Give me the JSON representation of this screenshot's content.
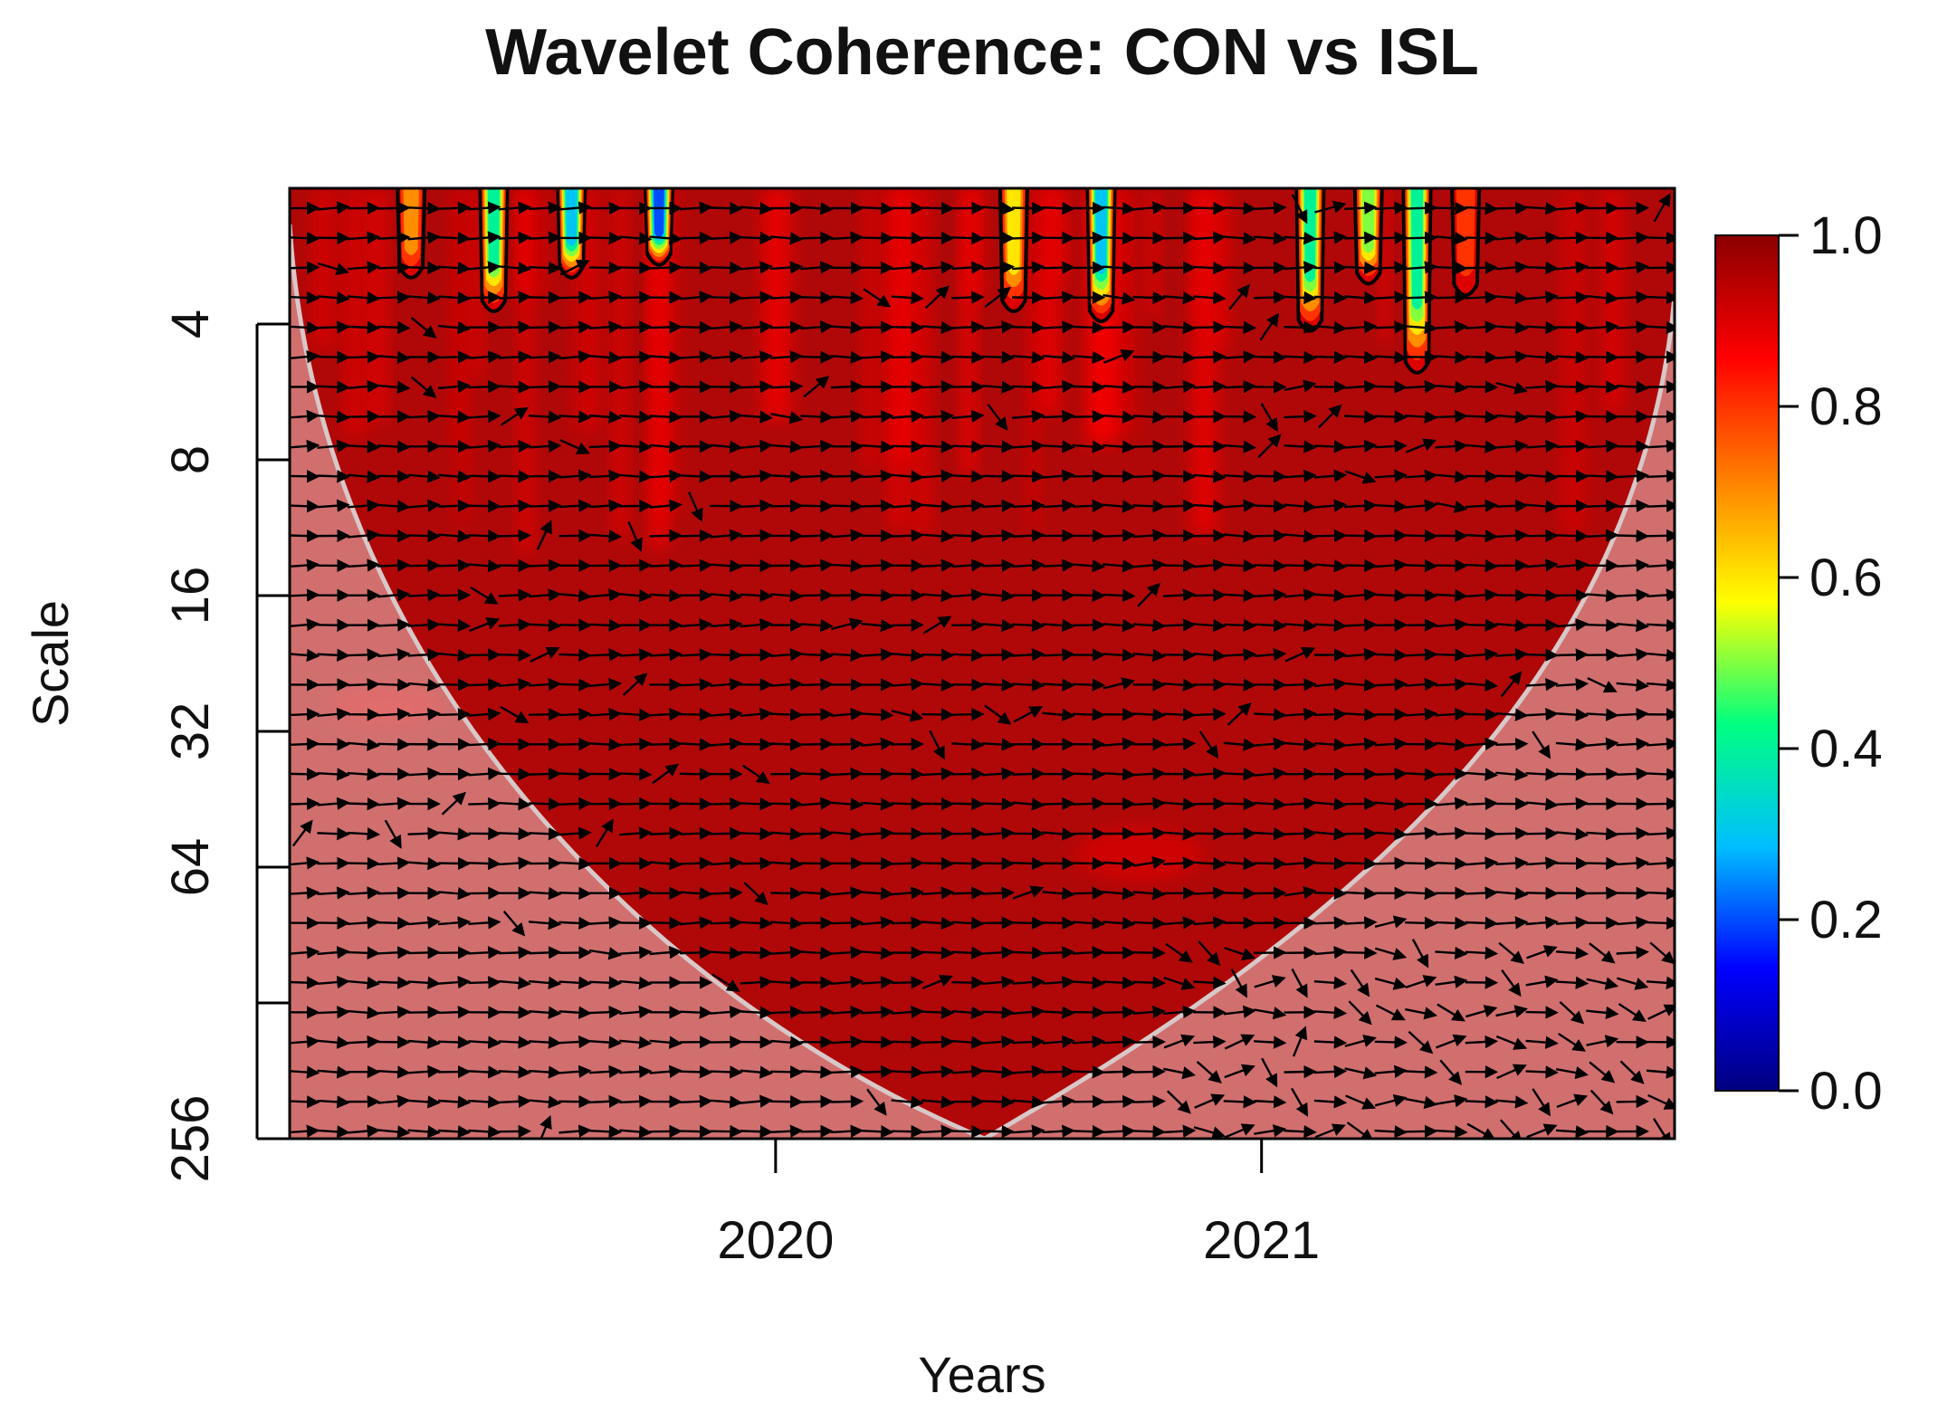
{
  "chart_data": {
    "type": "heatmap",
    "title": "Wavelet Coherence: CON vs ISL",
    "xlabel": "Years",
    "ylabel": "Scale",
    "x_range": [
      2019.0,
      2021.85
    ],
    "x_ticks": [
      {
        "value": 2020,
        "label": "2020"
      },
      {
        "value": 2021,
        "label": "2021"
      }
    ],
    "y_scale": "log2",
    "y_range": [
      2,
      256
    ],
    "y_ticks": [
      {
        "value": 4,
        "label": "4"
      },
      {
        "value": 8,
        "label": "8"
      },
      {
        "value": 16,
        "label": "16"
      },
      {
        "value": 32,
        "label": "32"
      },
      {
        "value": 64,
        "label": "64"
      },
      {
        "value": 128,
        "label": ""
      },
      {
        "value": 256,
        "label": "256"
      }
    ],
    "colorbar": {
      "range": [
        0.0,
        1.0
      ],
      "ticks": [
        {
          "value": 0.0,
          "label": "0.0"
        },
        {
          "value": 0.2,
          "label": "0.2"
        },
        {
          "value": 0.4,
          "label": "0.4"
        },
        {
          "value": 0.6,
          "label": "0.6"
        },
        {
          "value": 0.8,
          "label": "0.8"
        },
        {
          "value": 1.0,
          "label": "1.0"
        }
      ],
      "colors": [
        "#000080",
        "#0000ff",
        "#00bfff",
        "#00ff80",
        "#ffff00",
        "#ff8000",
        "#ff0000",
        "#8b0000"
      ]
    },
    "background_coherence": 0.96,
    "cone_of_influence": {
      "apex_year": 2020.43,
      "apex_scale": 256,
      "left_edge_year": 2019.0,
      "right_edge_year": 2021.85,
      "shading": "outside cone (lighter)"
    },
    "low_coherence_regions": [
      {
        "year": 2019.25,
        "scale_top": 2,
        "scale_bottom": 3.2,
        "min_coherence": 0.7
      },
      {
        "year": 2019.42,
        "scale_top": 2,
        "scale_bottom": 3.8,
        "min_coherence": 0.35
      },
      {
        "year": 2019.58,
        "scale_top": 2,
        "scale_bottom": 3.2,
        "min_coherence": 0.3
      },
      {
        "year": 2019.76,
        "scale_top": 2,
        "scale_bottom": 3.0,
        "min_coherence": 0.2
      },
      {
        "year": 2020.49,
        "scale_top": 2,
        "scale_bottom": 3.8,
        "min_coherence": 0.55
      },
      {
        "year": 2020.67,
        "scale_top": 2,
        "scale_bottom": 4.0,
        "min_coherence": 0.3
      },
      {
        "year": 2021.1,
        "scale_top": 2,
        "scale_bottom": 4.2,
        "min_coherence": 0.4
      },
      {
        "year": 2021.22,
        "scale_top": 2,
        "scale_bottom": 3.3,
        "min_coherence": 0.5
      },
      {
        "year": 2021.32,
        "scale_top": 2,
        "scale_bottom": 5.2,
        "min_coherence": 0.35
      },
      {
        "year": 2021.42,
        "scale_top": 2,
        "scale_bottom": 3.5,
        "min_coherence": 0.8
      }
    ],
    "phase_arrows": {
      "dominant_direction": "right (in-phase)",
      "grid_columns": 46,
      "grid_rows": 32
    }
  }
}
